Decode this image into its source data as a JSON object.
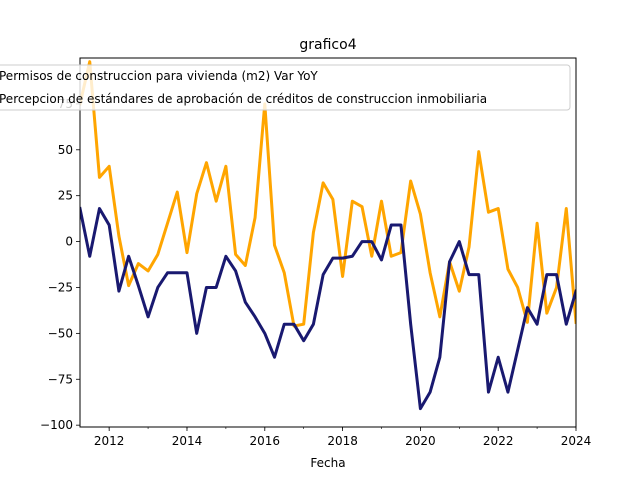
{
  "chart_data": {
    "type": "line",
    "title": "grafico4",
    "xlabel": "Fecha",
    "ylabel": "",
    "xlim": [
      2011.25,
      2024.0
    ],
    "ylim": [
      -101,
      100
    ],
    "x_ticks": [
      2012,
      2014,
      2016,
      2018,
      2020,
      2022,
      2024
    ],
    "x_tick_labels": [
      "2012",
      "2014",
      "2016",
      "2018",
      "2020",
      "2022",
      "2024"
    ],
    "y_ticks": [
      -100,
      -75,
      -50,
      -25,
      0,
      25,
      50,
      75
    ],
    "y_tick_labels": [
      "−100",
      "−75",
      "−50",
      "−25",
      "0",
      "25",
      "50",
      "75"
    ],
    "grid": false,
    "legend_position": "top",
    "series": [
      {
        "name": "Permisos de construccion para vivienda (m2) Var YoY",
        "color": "#FFA500",
        "x": [
          2011.25,
          2011.5,
          2011.75,
          2012.0,
          2012.25,
          2012.5,
          2012.75,
          2013.0,
          2013.25,
          2013.5,
          2013.75,
          2014.0,
          2014.25,
          2014.5,
          2014.75,
          2015.0,
          2015.25,
          2015.5,
          2015.75,
          2016.0,
          2016.25,
          2016.5,
          2016.75,
          2017.0,
          2017.25,
          2017.5,
          2017.75,
          2018.0,
          2018.25,
          2018.5,
          2018.75,
          2019.0,
          2019.25,
          2019.5,
          2019.75,
          2020.0,
          2020.25,
          2020.5,
          2020.75,
          2021.0,
          2021.25,
          2021.5,
          2021.75,
          2022.0,
          2022.25,
          2022.5,
          2022.75,
          2023.0,
          2023.25,
          2023.5,
          2023.75,
          2024.0
        ],
        "y": [
          75,
          98,
          35,
          41,
          3,
          -24,
          -12,
          -16,
          -7,
          10,
          27,
          -6,
          26,
          43,
          22,
          41,
          -7,
          -13,
          13,
          75,
          -2,
          -17,
          -46,
          -45,
          5,
          32,
          23,
          -19,
          22,
          19,
          -8,
          22,
          -8,
          -6,
          33,
          15,
          -17,
          -41,
          -11,
          -27,
          -3,
          49,
          16,
          18,
          -15,
          -25,
          -44,
          10,
          -39,
          -25,
          18,
          -44
        ]
      },
      {
        "name": "Percepcion de estándares de aprobación de créditos de construccion inmobiliaria",
        "color": "#191970",
        "x": [
          2011.25,
          2011.5,
          2011.75,
          2012.0,
          2012.25,
          2012.5,
          2012.75,
          2013.0,
          2013.25,
          2013.5,
          2013.75,
          2014.0,
          2014.25,
          2014.5,
          2014.75,
          2015.0,
          2015.25,
          2015.5,
          2015.75,
          2016.0,
          2016.25,
          2016.5,
          2016.75,
          2017.0,
          2017.25,
          2017.5,
          2017.75,
          2018.0,
          2018.25,
          2018.5,
          2018.75,
          2019.0,
          2019.25,
          2019.5,
          2019.75,
          2020.0,
          2020.25,
          2020.5,
          2020.75,
          2021.0,
          2021.25,
          2021.5,
          2021.75,
          2022.0,
          2022.25,
          2022.5,
          2022.75,
          2023.0,
          2023.25,
          2023.5,
          2023.75,
          2024.0
        ],
        "y": [
          18,
          -8,
          18,
          9,
          -27,
          -8,
          -24,
          -41,
          -25,
          -17,
          -17,
          -17,
          -50,
          -25,
          -25,
          -8,
          -16,
          -33,
          -41,
          -50,
          -63,
          -45,
          -45,
          -54,
          -45,
          -18,
          -9,
          -9,
          -8,
          0,
          0,
          -10,
          9,
          9,
          -45,
          -91,
          -82,
          -63,
          -11,
          0,
          -18,
          -18,
          -82,
          -63,
          -82,
          -59,
          -36,
          -45,
          -18,
          -18,
          -45,
          -27
        ]
      }
    ]
  }
}
